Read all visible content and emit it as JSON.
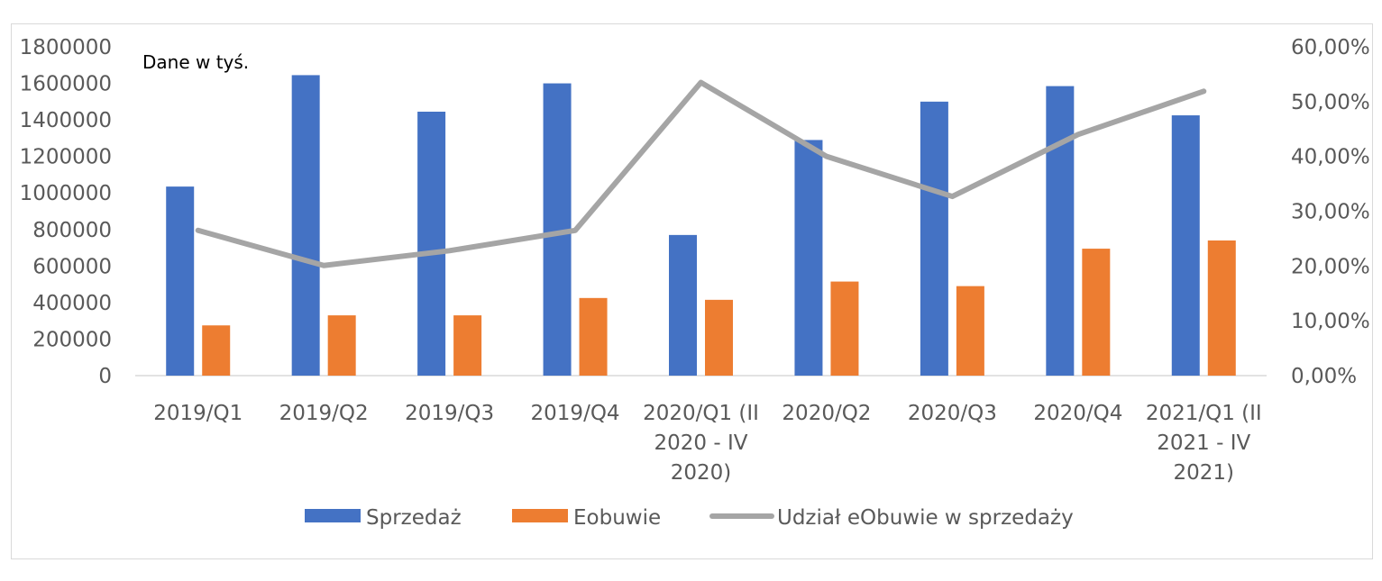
{
  "chart_data": {
    "type": "bar",
    "annotation": "Dane w tyś.",
    "categories": [
      [
        "2019/Q1"
      ],
      [
        "2019/Q2"
      ],
      [
        "2019/Q3"
      ],
      [
        "2019/Q4"
      ],
      [
        "2020/Q1 (II",
        "2020 - IV",
        "2020)"
      ],
      [
        "2020/Q2"
      ],
      [
        "2020/Q3"
      ],
      [
        "2020/Q4"
      ],
      [
        "2021/Q1 (II",
        "2021 - IV",
        "2021)"
      ]
    ],
    "series": [
      {
        "name": "Sprzedaż",
        "type": "bar",
        "axis": "left",
        "color": "#4472C4",
        "values": [
          1035000,
          1645000,
          1445000,
          1600000,
          770000,
          1290000,
          1500000,
          1585000,
          1425000
        ]
      },
      {
        "name": "Eobuwie",
        "type": "bar",
        "axis": "left",
        "color": "#ED7D31",
        "values": [
          275000,
          330000,
          330000,
          425000,
          415000,
          515000,
          490000,
          695000,
          740000
        ]
      },
      {
        "name": "Udział eObuwie w sprzedaży",
        "type": "line",
        "axis": "right",
        "color": "#A5A5A5",
        "values": [
          0.265,
          0.201,
          0.228,
          0.265,
          0.535,
          0.4,
          0.327,
          0.44,
          0.519
        ]
      }
    ],
    "y_left": {
      "min": 0,
      "max": 1800000,
      "step": 200000,
      "tick_labels": [
        "0",
        "200000",
        "400000",
        "600000",
        "800000",
        "1000000",
        "1200000",
        "1400000",
        "1600000",
        "1800000"
      ]
    },
    "y_right": {
      "min": 0,
      "max": 0.6,
      "step": 0.1,
      "tick_labels": [
        "0,00%",
        "10,00%",
        "20,00%",
        "30,00%",
        "40,00%",
        "50,00%",
        "60,00%"
      ]
    },
    "grid": false,
    "legend_position": "bottom"
  }
}
